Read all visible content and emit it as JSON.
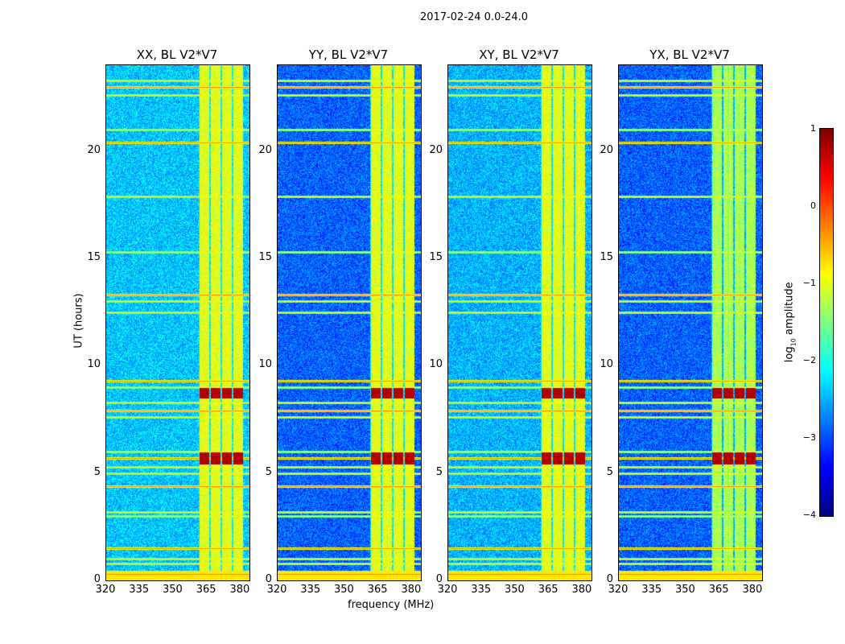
{
  "suptitle": "2017-02-24 0.0-24.0",
  "chart_data": {
    "type": "heatmap",
    "title": "2017-02-24 0.0-24.0",
    "xlabel": "frequency (MHz)",
    "ylabel": "UT (hours)",
    "xlim": [
      320,
      384
    ],
    "ylim": [
      0,
      24
    ],
    "xticks": [
      "320",
      "335",
      "350",
      "365",
      "380"
    ],
    "xtick_values": [
      320,
      335,
      350,
      365,
      380
    ],
    "yticks": [
      "0",
      "5",
      "10",
      "15",
      "20"
    ],
    "ytick_values": [
      0,
      5,
      10,
      15,
      20
    ],
    "rfi_band_mhz": [
      361,
      381
    ],
    "rfi_time_rows_hours": [
      0.3,
      0.8,
      1.0,
      1.5,
      3.0,
      3.2,
      4.4,
      5.0,
      5.3,
      5.7,
      6.0,
      7.6,
      7.9,
      8.3,
      9.0,
      9.3,
      12.5,
      13.0,
      13.3,
      15.3,
      17.9,
      20.4,
      21.0,
      22.6,
      23.0,
      23.3
    ],
    "panels": [
      {
        "title": "XX, BL V2*V7",
        "background_log10": -2.4
      },
      {
        "title": "YY, BL V2*V7",
        "background_log10": -2.9
      },
      {
        "title": "XY, BL V2*V7",
        "background_log10": -2.5
      },
      {
        "title": "YX, BL V2*V7",
        "background_log10": -2.9
      }
    ],
    "colorbar": {
      "label": "log10 amplitude",
      "label_main": "log",
      "label_sub": "10",
      "label_rest": " amplitude",
      "colormap": "jet",
      "range": [
        -4,
        1
      ],
      "ticks": [
        "1",
        "0",
        "−1",
        "−2",
        "−3",
        "−4"
      ],
      "tick_values": [
        1,
        0,
        -1,
        -2,
        -3,
        -4
      ]
    }
  }
}
